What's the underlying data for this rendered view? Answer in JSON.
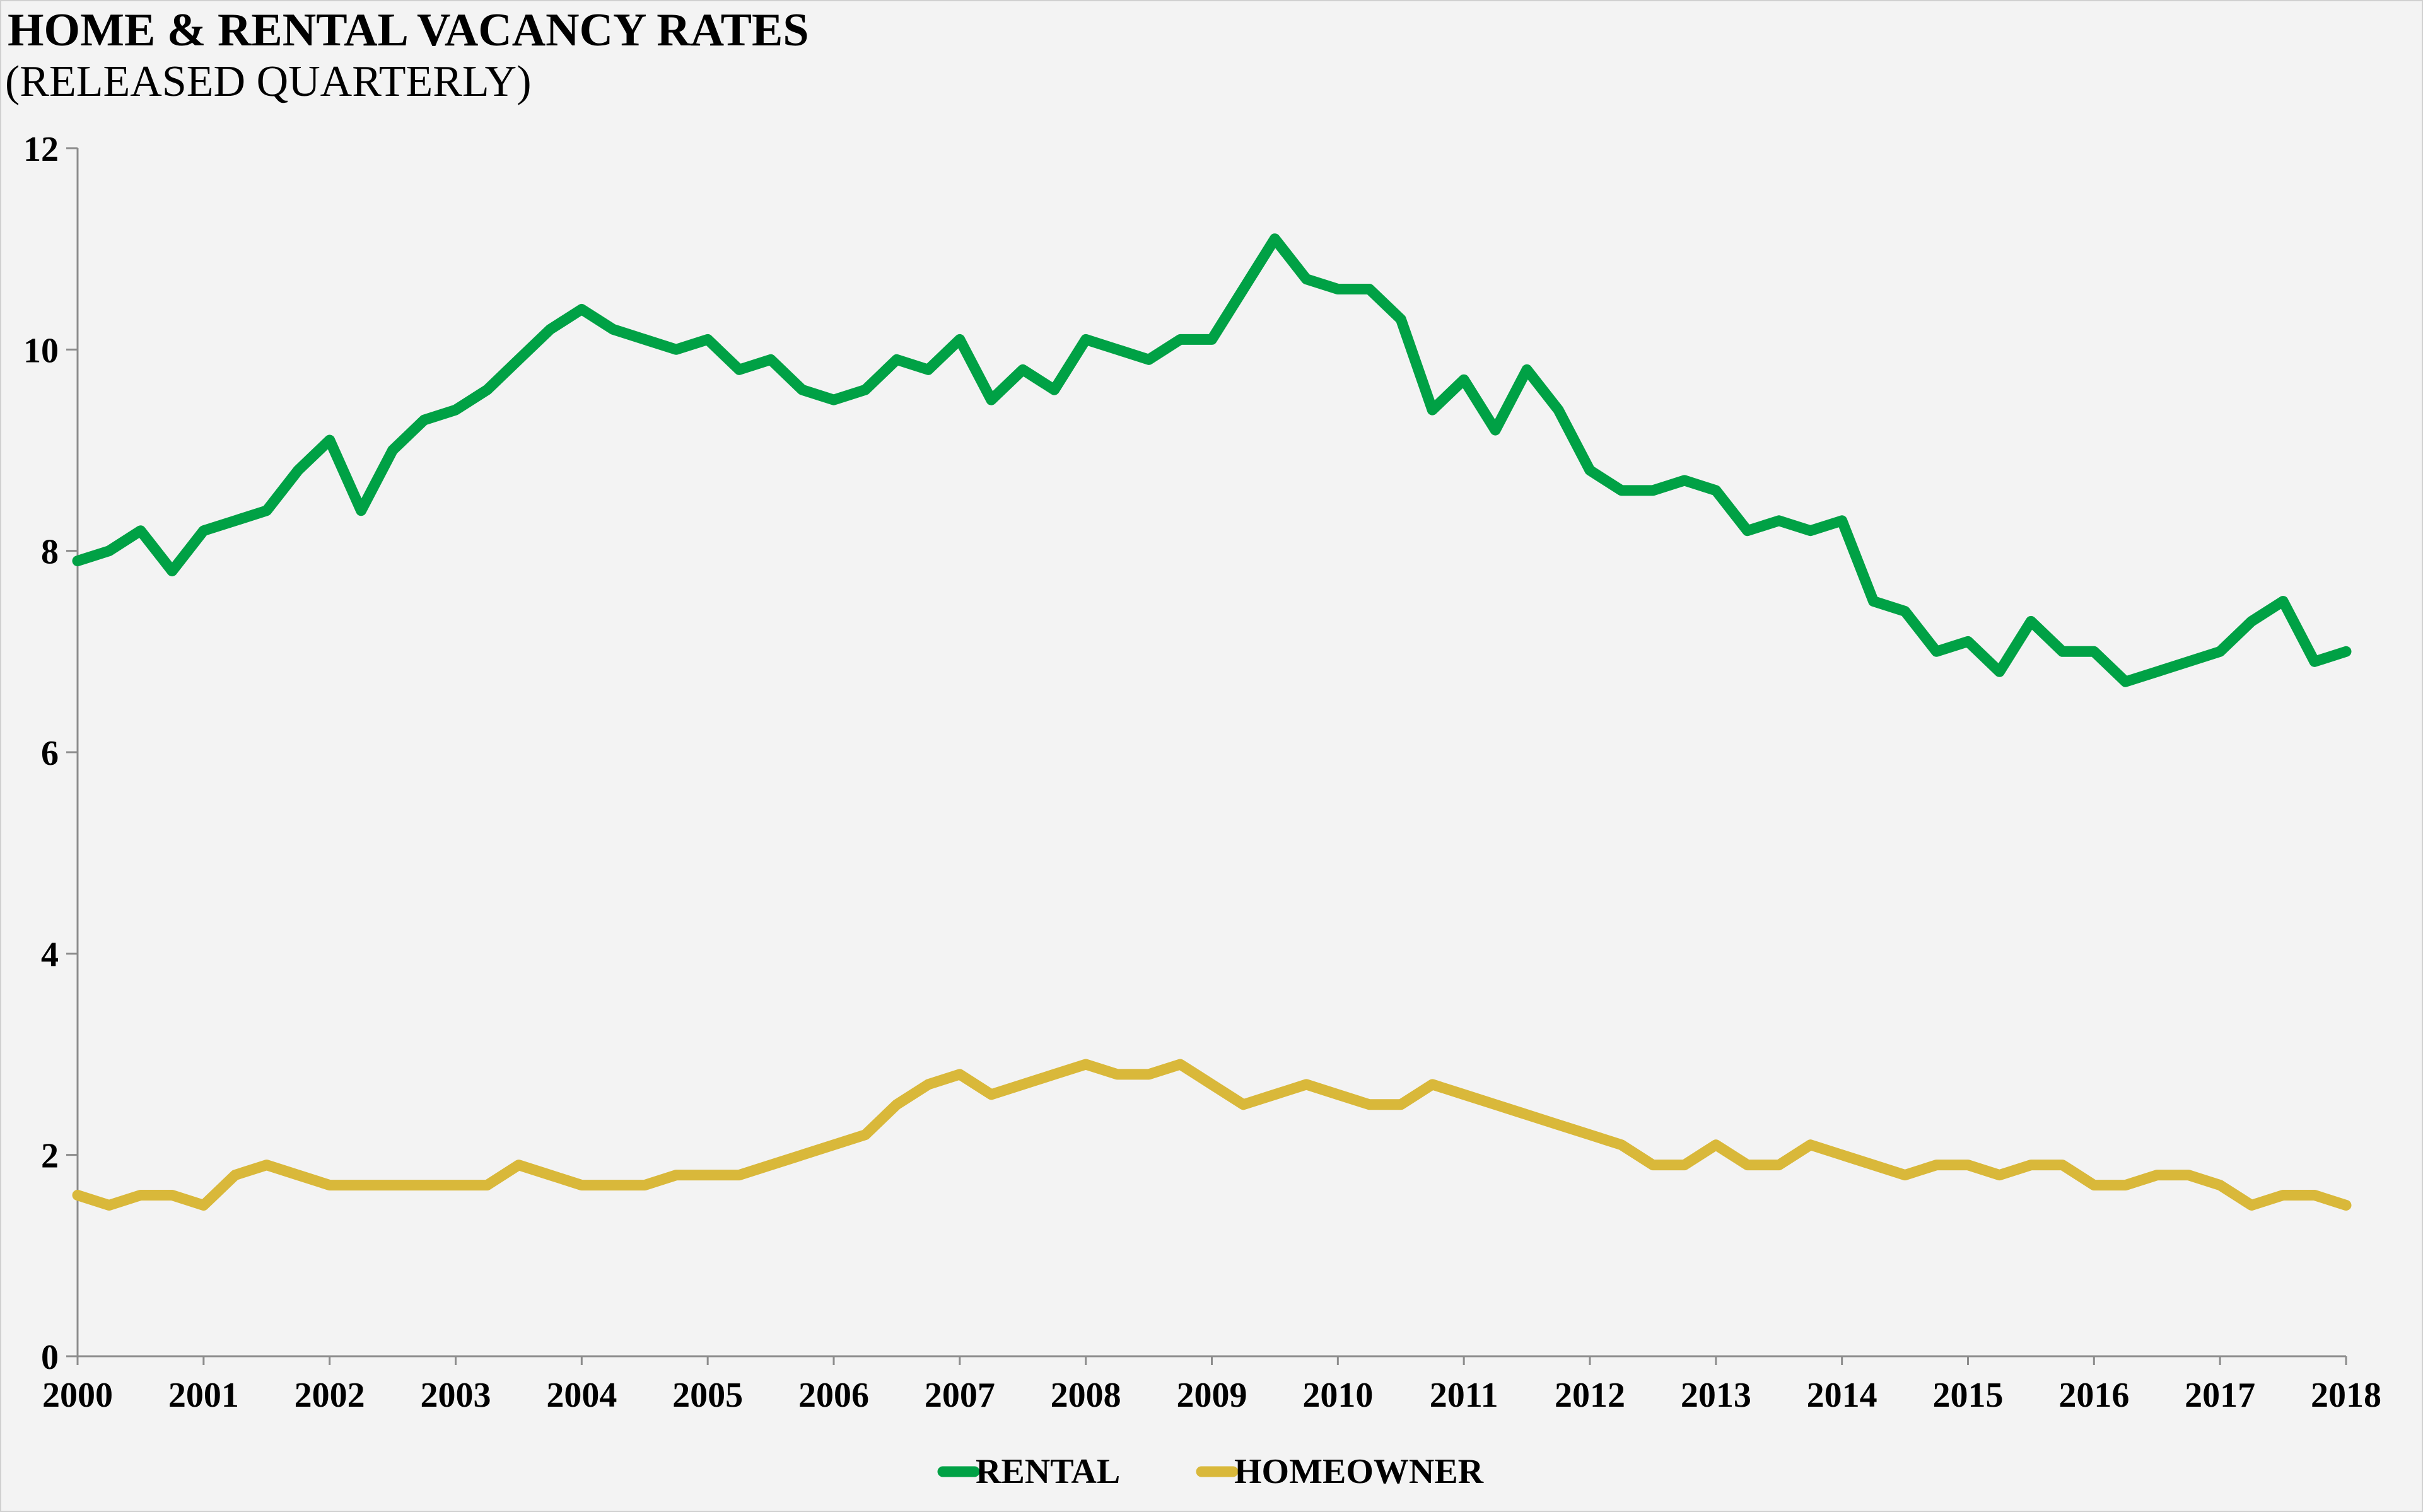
{
  "chart_data": {
    "type": "line",
    "title": "HOME & RENTAL VACANCY RATES",
    "subtitle": "(RELEASED QUARTERLY)",
    "xlabel": "",
    "ylabel": "",
    "frequency": "quarterly",
    "x_start": "2000 Q1",
    "x_end": "2018 Q1",
    "xlim": [
      2000,
      2018
    ],
    "ylim": [
      0,
      12
    ],
    "y_ticks": [
      0,
      2,
      4,
      6,
      8,
      10,
      12
    ],
    "x_ticks": [
      "2000",
      "2001",
      "2002",
      "2003",
      "2004",
      "2005",
      "2006",
      "2007",
      "2008",
      "2009",
      "2010",
      "2011",
      "2012",
      "2013",
      "2014",
      "2015",
      "2016",
      "2017",
      "2018"
    ],
    "grid": false,
    "legend_position": "bottom",
    "series": [
      {
        "name": "RENTAL",
        "color": "#00a145",
        "values": [
          7.9,
          8.0,
          8.2,
          7.8,
          8.2,
          8.3,
          8.4,
          8.8,
          9.1,
          8.4,
          9.0,
          9.3,
          9.4,
          9.6,
          9.9,
          10.2,
          10.4,
          10.2,
          10.1,
          10.0,
          10.1,
          9.8,
          9.9,
          9.6,
          9.5,
          9.6,
          9.9,
          9.8,
          10.1,
          9.5,
          9.8,
          9.6,
          10.1,
          10.0,
          9.9,
          10.1,
          10.1,
          10.6,
          11.1,
          10.7,
          10.6,
          10.6,
          10.3,
          9.4,
          9.7,
          9.2,
          9.8,
          9.4,
          8.8,
          8.6,
          8.6,
          8.7,
          8.6,
          8.2,
          8.3,
          8.2,
          8.3,
          7.5,
          7.4,
          7.0,
          7.1,
          6.8,
          7.3,
          7.0,
          7.0,
          6.7,
          6.8,
          6.9,
          7.0,
          7.3,
          7.5,
          6.9,
          7.0
        ]
      },
      {
        "name": "HOMEOWNER",
        "color": "#d9b83a",
        "values": [
          1.6,
          1.5,
          1.6,
          1.6,
          1.5,
          1.8,
          1.9,
          1.8,
          1.7,
          1.7,
          1.7,
          1.7,
          1.7,
          1.7,
          1.9,
          1.8,
          1.7,
          1.7,
          1.7,
          1.8,
          1.8,
          1.8,
          1.9,
          2.0,
          2.1,
          2.2,
          2.5,
          2.7,
          2.8,
          2.6,
          2.7,
          2.8,
          2.9,
          2.8,
          2.8,
          2.9,
          2.7,
          2.5,
          2.6,
          2.7,
          2.6,
          2.5,
          2.5,
          2.7,
          2.6,
          2.5,
          2.4,
          2.3,
          2.2,
          2.1,
          1.9,
          1.9,
          2.1,
          1.9,
          1.9,
          2.1,
          2.0,
          1.9,
          1.8,
          1.9,
          1.9,
          1.8,
          1.9,
          1.9,
          1.7,
          1.7,
          1.8,
          1.8,
          1.7,
          1.5,
          1.6,
          1.6,
          1.5
        ]
      }
    ]
  }
}
